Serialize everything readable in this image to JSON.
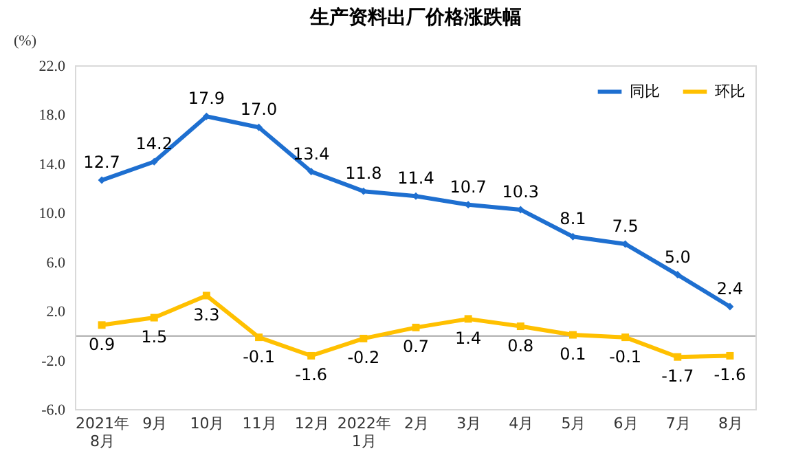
{
  "chart_data": {
    "type": "line",
    "title": "生产资料出厂价格涨跌幅",
    "ylabel": "(%)",
    "categories": [
      "2021年\n8月",
      "9月",
      "10月",
      "11月",
      "12月",
      "2022年\n1月",
      "2月",
      "3月",
      "4月",
      "5月",
      "6月",
      "7月",
      "8月"
    ],
    "series": [
      {
        "name": "同比",
        "color": "#1e6fd0",
        "marker": "diamond",
        "values": [
          12.7,
          14.2,
          17.9,
          17.0,
          13.4,
          11.8,
          11.4,
          10.7,
          10.3,
          8.1,
          7.5,
          5.0,
          2.4
        ],
        "value_labels": [
          "12.7",
          "14.2",
          "17.9",
          "17.0",
          "13.4",
          "11.8",
          "11.4",
          "10.7",
          "10.3",
          "8.1",
          "7.5",
          "5.0",
          "2.4"
        ]
      },
      {
        "name": "环比",
        "color": "#ffc000",
        "marker": "square",
        "values": [
          0.9,
          1.5,
          3.3,
          -0.1,
          -1.6,
          -0.2,
          0.7,
          1.4,
          0.8,
          0.1,
          -0.1,
          -1.7,
          -1.6
        ],
        "value_labels": [
          "0.9",
          "1.5",
          "3.3",
          "-0.1",
          "-1.6",
          "-0.2",
          "0.7",
          "1.4",
          "0.8",
          "0.1",
          "-0.1",
          "-1.7",
          "-1.6"
        ]
      }
    ],
    "ylim": [
      -6,
      22
    ],
    "yticks": [
      {
        "value": -6,
        "label": "-6.0"
      },
      {
        "value": -2,
        "label": "-2.0"
      },
      {
        "value": 2,
        "label": "2.0"
      },
      {
        "value": 6,
        "label": "6.0"
      },
      {
        "value": 10,
        "label": "10.0"
      },
      {
        "value": 14,
        "label": "14.0"
      },
      {
        "value": 18,
        "label": "18.0"
      },
      {
        "value": 22,
        "label": "22.0"
      }
    ],
    "ref_lines": [
      {
        "axis": "y",
        "value": 0,
        "color": "#a6a6a6"
      }
    ],
    "grid": false,
    "legend": "top right",
    "line_style": "solid"
  }
}
